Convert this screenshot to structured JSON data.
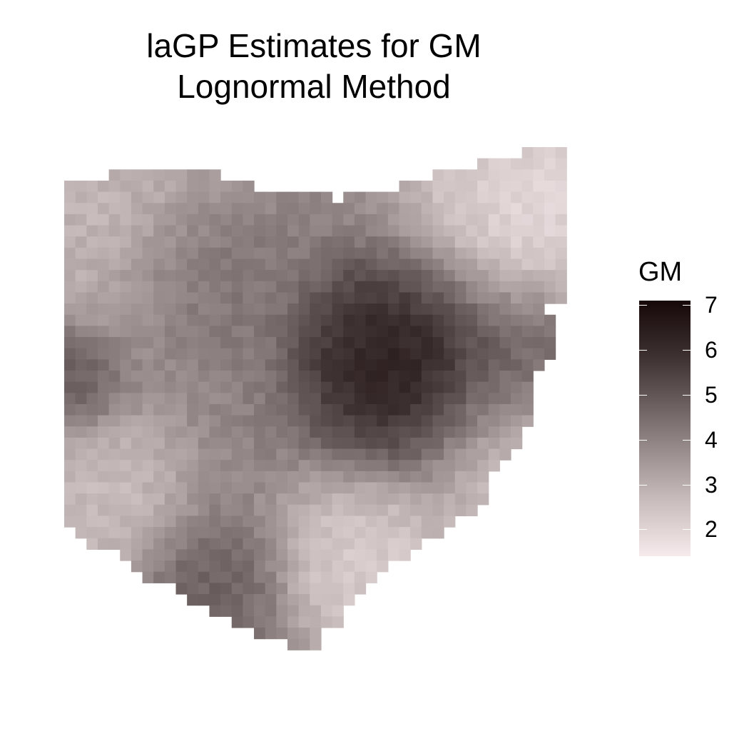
{
  "chart_data": {
    "type": "heatmap",
    "title": "laGP Estimates for GM",
    "subtitle": "Lognormal Method",
    "legend": {
      "title": "GM",
      "ticks": [
        7,
        6,
        5,
        4,
        3,
        2
      ],
      "range": [
        1.4,
        7.1
      ],
      "colors": [
        "#f7eaec",
        "#160808"
      ],
      "placement": "right"
    },
    "grid": false,
    "value_field": {
      "background": 3.9,
      "hotspots": [
        {
          "col": 14,
          "row": 9,
          "value": 7.0,
          "spread": 2.4
        },
        {
          "col": 19,
          "row": 9,
          "value": 5.6,
          "spread": 1.8
        },
        {
          "col": 5,
          "row": 5,
          "value": 4.6,
          "spread": 1.8
        },
        {
          "col": 0,
          "row": 10,
          "value": 5.1,
          "spread": 1.2
        },
        {
          "col": 6,
          "row": 19,
          "value": 4.9,
          "spread": 1.5
        },
        {
          "col": 19,
          "row": 3,
          "value": 1.5,
          "spread": 3.0
        },
        {
          "col": 19,
          "row": 13,
          "value": 2.0,
          "spread": 2.5
        },
        {
          "col": 12,
          "row": 18,
          "value": 1.9,
          "spread": 2.0
        },
        {
          "col": 2,
          "row": 3,
          "value": 2.5,
          "spread": 2.5
        },
        {
          "col": 1,
          "row": 15,
          "value": 2.4,
          "spread": 2.0
        }
      ]
    }
  }
}
